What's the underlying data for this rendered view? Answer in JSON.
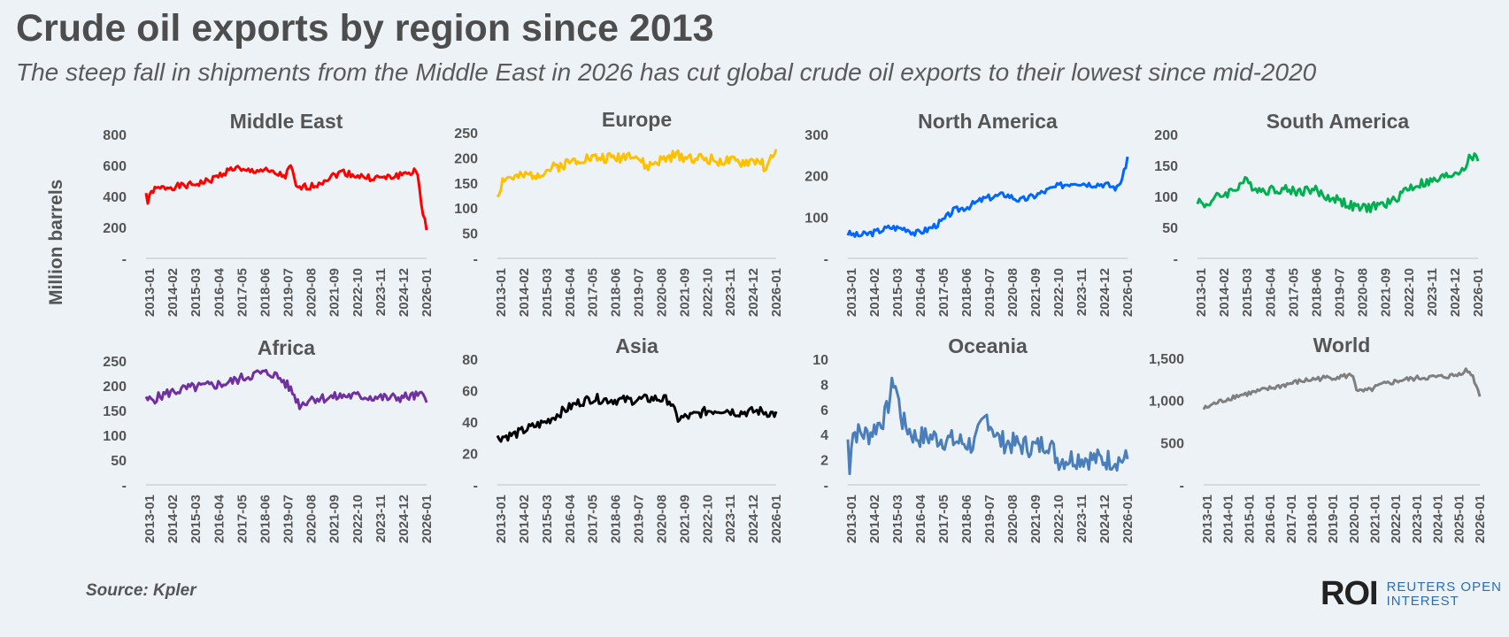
{
  "title": "Crude oil exports by region since 2013",
  "subtitle": "The steep fall in shipments from the Middle East in 2026 has cut global crude oil exports to their lowest since mid-2020",
  "ylabel": "Million barrels",
  "source": "Source:  Kpler",
  "logo": {
    "mark": "ROI",
    "line1": "REUTERS OPEN",
    "line2": "INTEREST",
    "color": "#2e6db4"
  },
  "chart_data": [
    {
      "type": "line",
      "title": "Middle East",
      "color": "#ff0000",
      "ylim": [
        0,
        800
      ],
      "yticks": [
        "-",
        "200",
        "400",
        "600",
        "800"
      ],
      "xticks": [
        "2013-01",
        "2014-02",
        "2015-03",
        "2016-04",
        "2017-05",
        "2018-06",
        "2019-07",
        "2020-08",
        "2021-09",
        "2022-10",
        "2023-11",
        "2024-12",
        "2026-01"
      ],
      "anchors": [
        [
          2013.0,
          420
        ],
        [
          2013.08,
          360
        ],
        [
          2013.3,
          440
        ],
        [
          2014.0,
          460
        ],
        [
          2015.0,
          470
        ],
        [
          2016.0,
          500
        ],
        [
          2016.8,
          560
        ],
        [
          2017.3,
          590
        ],
        [
          2017.5,
          560
        ],
        [
          2018.5,
          570
        ],
        [
          2019.0,
          550
        ],
        [
          2019.6,
          530
        ],
        [
          2019.9,
          600
        ],
        [
          2020.1,
          450
        ],
        [
          2020.5,
          460
        ],
        [
          2021.0,
          470
        ],
        [
          2021.5,
          510
        ],
        [
          2022.3,
          560
        ],
        [
          2022.8,
          540
        ],
        [
          2023.5,
          520
        ],
        [
          2024.5,
          520
        ],
        [
          2025.3,
          550
        ],
        [
          2025.7,
          560
        ],
        [
          2025.9,
          540
        ],
        [
          2026.05,
          330
        ],
        [
          2026.2,
          260
        ],
        [
          2026.3,
          200
        ]
      ],
      "noise": 22,
      "seed": 1
    },
    {
      "type": "line",
      "title": "Europe",
      "color": "#ffc000",
      "ylim": [
        0,
        250
      ],
      "yticks": [
        "-",
        "50",
        "100",
        "150",
        "200",
        "250"
      ],
      "xticks": [
        "2013-01",
        "2014-02",
        "2015-03",
        "2016-04",
        "2017-05",
        "2018-06",
        "2019-07",
        "2020-08",
        "2021-09",
        "2022-10",
        "2023-11",
        "2024-12",
        "2026-01"
      ],
      "anchors": [
        [
          2013.0,
          125
        ],
        [
          2013.3,
          160
        ],
        [
          2014.0,
          160
        ],
        [
          2015.0,
          170
        ],
        [
          2016.0,
          185
        ],
        [
          2017.0,
          200
        ],
        [
          2018.0,
          200
        ],
        [
          2018.7,
          200
        ],
        [
          2019.5,
          210
        ],
        [
          2020.1,
          180
        ],
        [
          2020.5,
          190
        ],
        [
          2021.5,
          205
        ],
        [
          2022.5,
          200
        ],
        [
          2023.5,
          195
        ],
        [
          2024.5,
          190
        ],
        [
          2025.5,
          195
        ],
        [
          2025.9,
          175
        ],
        [
          2026.1,
          210
        ],
        [
          2026.3,
          210
        ]
      ],
      "noise": 11,
      "seed": 2
    },
    {
      "type": "line",
      "title": "North America",
      "color": "#0066ff",
      "ylim": [
        0,
        300
      ],
      "yticks": [
        "-",
        "100",
        "200",
        "300"
      ],
      "xticks": [
        "2013-01",
        "2014-02",
        "2015-03",
        "2016-04",
        "2017-05",
        "2018-06",
        "2019-07",
        "2020-08",
        "2021-09",
        "2022-10",
        "2023-11",
        "2024-12",
        "2026-01"
      ],
      "anchors": [
        [
          2013.0,
          60
        ],
        [
          2013.5,
          55
        ],
        [
          2014.2,
          62
        ],
        [
          2015.0,
          75
        ],
        [
          2015.8,
          72
        ],
        [
          2016.2,
          60
        ],
        [
          2016.8,
          70
        ],
        [
          2017.5,
          90
        ],
        [
          2018.0,
          115
        ],
        [
          2018.7,
          125
        ],
        [
          2019.5,
          145
        ],
        [
          2020.5,
          155
        ],
        [
          2021.2,
          140
        ],
        [
          2021.8,
          150
        ],
        [
          2022.5,
          165
        ],
        [
          2023.0,
          175
        ],
        [
          2023.8,
          185
        ],
        [
          2024.5,
          180
        ],
        [
          2025.2,
          180
        ],
        [
          2025.8,
          170
        ],
        [
          2026.1,
          200
        ],
        [
          2026.3,
          245
        ]
      ],
      "noise": 8,
      "seed": 3
    },
    {
      "type": "line",
      "title": "South America",
      "color": "#00b050",
      "ylim": [
        0,
        200
      ],
      "yticks": [
        "-",
        "50",
        "100",
        "150",
        "200"
      ],
      "xticks": [
        "2013-01",
        "2014-02",
        "2015-03",
        "2016-04",
        "2017-05",
        "2018-06",
        "2019-07",
        "2020-08",
        "2021-09",
        "2022-10",
        "2023-11",
        "2024-12",
        "2026-01"
      ],
      "anchors": [
        [
          2013.0,
          95
        ],
        [
          2013.3,
          85
        ],
        [
          2014.0,
          100
        ],
        [
          2014.7,
          110
        ],
        [
          2015.2,
          125
        ],
        [
          2016.0,
          110
        ],
        [
          2017.0,
          112
        ],
        [
          2017.8,
          108
        ],
        [
          2018.5,
          112
        ],
        [
          2019.0,
          100
        ],
        [
          2019.7,
          95
        ],
        [
          2020.2,
          85
        ],
        [
          2020.8,
          80
        ],
        [
          2021.5,
          85
        ],
        [
          2022.2,
          90
        ],
        [
          2022.8,
          110
        ],
        [
          2023.5,
          120
        ],
        [
          2024.3,
          125
        ],
        [
          2025.0,
          135
        ],
        [
          2025.6,
          145
        ],
        [
          2026.0,
          165
        ],
        [
          2026.3,
          160
        ]
      ],
      "noise": 8,
      "seed": 4
    },
    {
      "type": "line",
      "title": "Africa",
      "color": "#7030a0",
      "ylim": [
        0,
        250
      ],
      "yticks": [
        "-",
        "50",
        "100",
        "150",
        "200",
        "250"
      ],
      "xticks": [
        "2013-01",
        "2014-02",
        "2015-03",
        "2016-04",
        "2017-05",
        "2018-06",
        "2019-07",
        "2020-08",
        "2021-09",
        "2022-10",
        "2023-11",
        "2024-12",
        "2026-01"
      ],
      "anchors": [
        [
          2013.0,
          170
        ],
        [
          2013.5,
          175
        ],
        [
          2014.0,
          185
        ],
        [
          2015.0,
          195
        ],
        [
          2016.0,
          200
        ],
        [
          2016.8,
          205
        ],
        [
          2017.5,
          215
        ],
        [
          2018.3,
          225
        ],
        [
          2019.0,
          225
        ],
        [
          2019.5,
          210
        ],
        [
          2019.9,
          190
        ],
        [
          2020.3,
          160
        ],
        [
          2020.8,
          175
        ],
        [
          2021.5,
          175
        ],
        [
          2022.5,
          180
        ],
        [
          2023.5,
          178
        ],
        [
          2024.5,
          175
        ],
        [
          2025.5,
          178
        ],
        [
          2026.0,
          180
        ],
        [
          2026.3,
          175
        ]
      ],
      "noise": 10,
      "seed": 5
    },
    {
      "type": "line",
      "title": "Asia",
      "color": "#000000",
      "ylim": [
        0,
        80
      ],
      "yticks": [
        "-",
        "20",
        "40",
        "60",
        "80"
      ],
      "xticks": [
        "2013-01",
        "2014-02",
        "2015-03",
        "2016-04",
        "2017-05",
        "2018-06",
        "2019-07",
        "2020-08",
        "2021-09",
        "2022-10",
        "2023-11",
        "2024-12",
        "2026-01"
      ],
      "anchors": [
        [
          2013.0,
          30
        ],
        [
          2013.8,
          32
        ],
        [
          2014.5,
          36
        ],
        [
          2015.3,
          40
        ],
        [
          2016.0,
          46
        ],
        [
          2016.8,
          52
        ],
        [
          2017.5,
          55
        ],
        [
          2018.5,
          54
        ],
        [
          2019.5,
          54
        ],
        [
          2020.5,
          55
        ],
        [
          2021.2,
          54
        ],
        [
          2021.6,
          42
        ],
        [
          2022.3,
          44
        ],
        [
          2023.0,
          47
        ],
        [
          2023.8,
          48
        ],
        [
          2024.5,
          46
        ],
        [
          2025.5,
          47
        ],
        [
          2026.3,
          45
        ]
      ],
      "noise": 3,
      "seed": 6
    },
    {
      "type": "line",
      "title": "Oceania",
      "color": "#4a7ebb",
      "ylim": [
        0,
        10
      ],
      "yticks": [
        "-",
        "2",
        "4",
        "6",
        "8",
        "10"
      ],
      "xticks": [
        "2013-01",
        "2014-02",
        "2015-03",
        "2016-04",
        "2017-05",
        "2018-06",
        "2019-07",
        "2020-08",
        "2021-09",
        "2022-10",
        "2023-11",
        "2024-12",
        "2026-01"
      ],
      "anchors": [
        [
          2013.0,
          3.5
        ],
        [
          2013.05,
          0.8
        ],
        [
          2013.2,
          4.2
        ],
        [
          2014.0,
          4.0
        ],
        [
          2014.8,
          5.5
        ],
        [
          2015.2,
          8.5
        ],
        [
          2015.6,
          5.0
        ],
        [
          2016.2,
          3.8
        ],
        [
          2017.0,
          3.8
        ],
        [
          2018.0,
          3.5
        ],
        [
          2019.0,
          3.2
        ],
        [
          2019.6,
          5.5
        ],
        [
          2020.2,
          3.5
        ],
        [
          2021.0,
          3.2
        ],
        [
          2022.0,
          3.0
        ],
        [
          2022.5,
          3.5
        ],
        [
          2023.0,
          2.0
        ],
        [
          2024.0,
          2.2
        ],
        [
          2025.0,
          2.0
        ],
        [
          2026.3,
          2.0
        ]
      ],
      "noise": 0.9,
      "seed": 7
    },
    {
      "type": "line",
      "title": "World",
      "color": "#7f7f7f",
      "ylim": [
        0,
        1500
      ],
      "yticks": [
        "-",
        "500",
        "1,000",
        "1,500"
      ],
      "xticks": [
        "2013-01",
        "2014-01",
        "2015-01",
        "2016-01",
        "2017-01",
        "2018-01",
        "2019-01",
        "2020-01",
        "2021-01",
        "2022-01",
        "2023-01",
        "2024-01",
        "2025-01",
        "2026-01"
      ],
      "anchors": [
        [
          2013.0,
          900
        ],
        [
          2013.5,
          960
        ],
        [
          2014.5,
          1050
        ],
        [
          2015.5,
          1100
        ],
        [
          2016.5,
          1160
        ],
        [
          2017.5,
          1220
        ],
        [
          2018.5,
          1260
        ],
        [
          2019.5,
          1280
        ],
        [
          2020.2,
          1300
        ],
        [
          2020.4,
          1100
        ],
        [
          2021.0,
          1120
        ],
        [
          2021.5,
          1180
        ],
        [
          2022.5,
          1240
        ],
        [
          2023.5,
          1270
        ],
        [
          2024.5,
          1280
        ],
        [
          2025.2,
          1300
        ],
        [
          2025.6,
          1360
        ],
        [
          2025.9,
          1320
        ],
        [
          2026.1,
          1200
        ],
        [
          2026.3,
          1060
        ]
      ],
      "noise": 30,
      "seed": 8
    }
  ]
}
